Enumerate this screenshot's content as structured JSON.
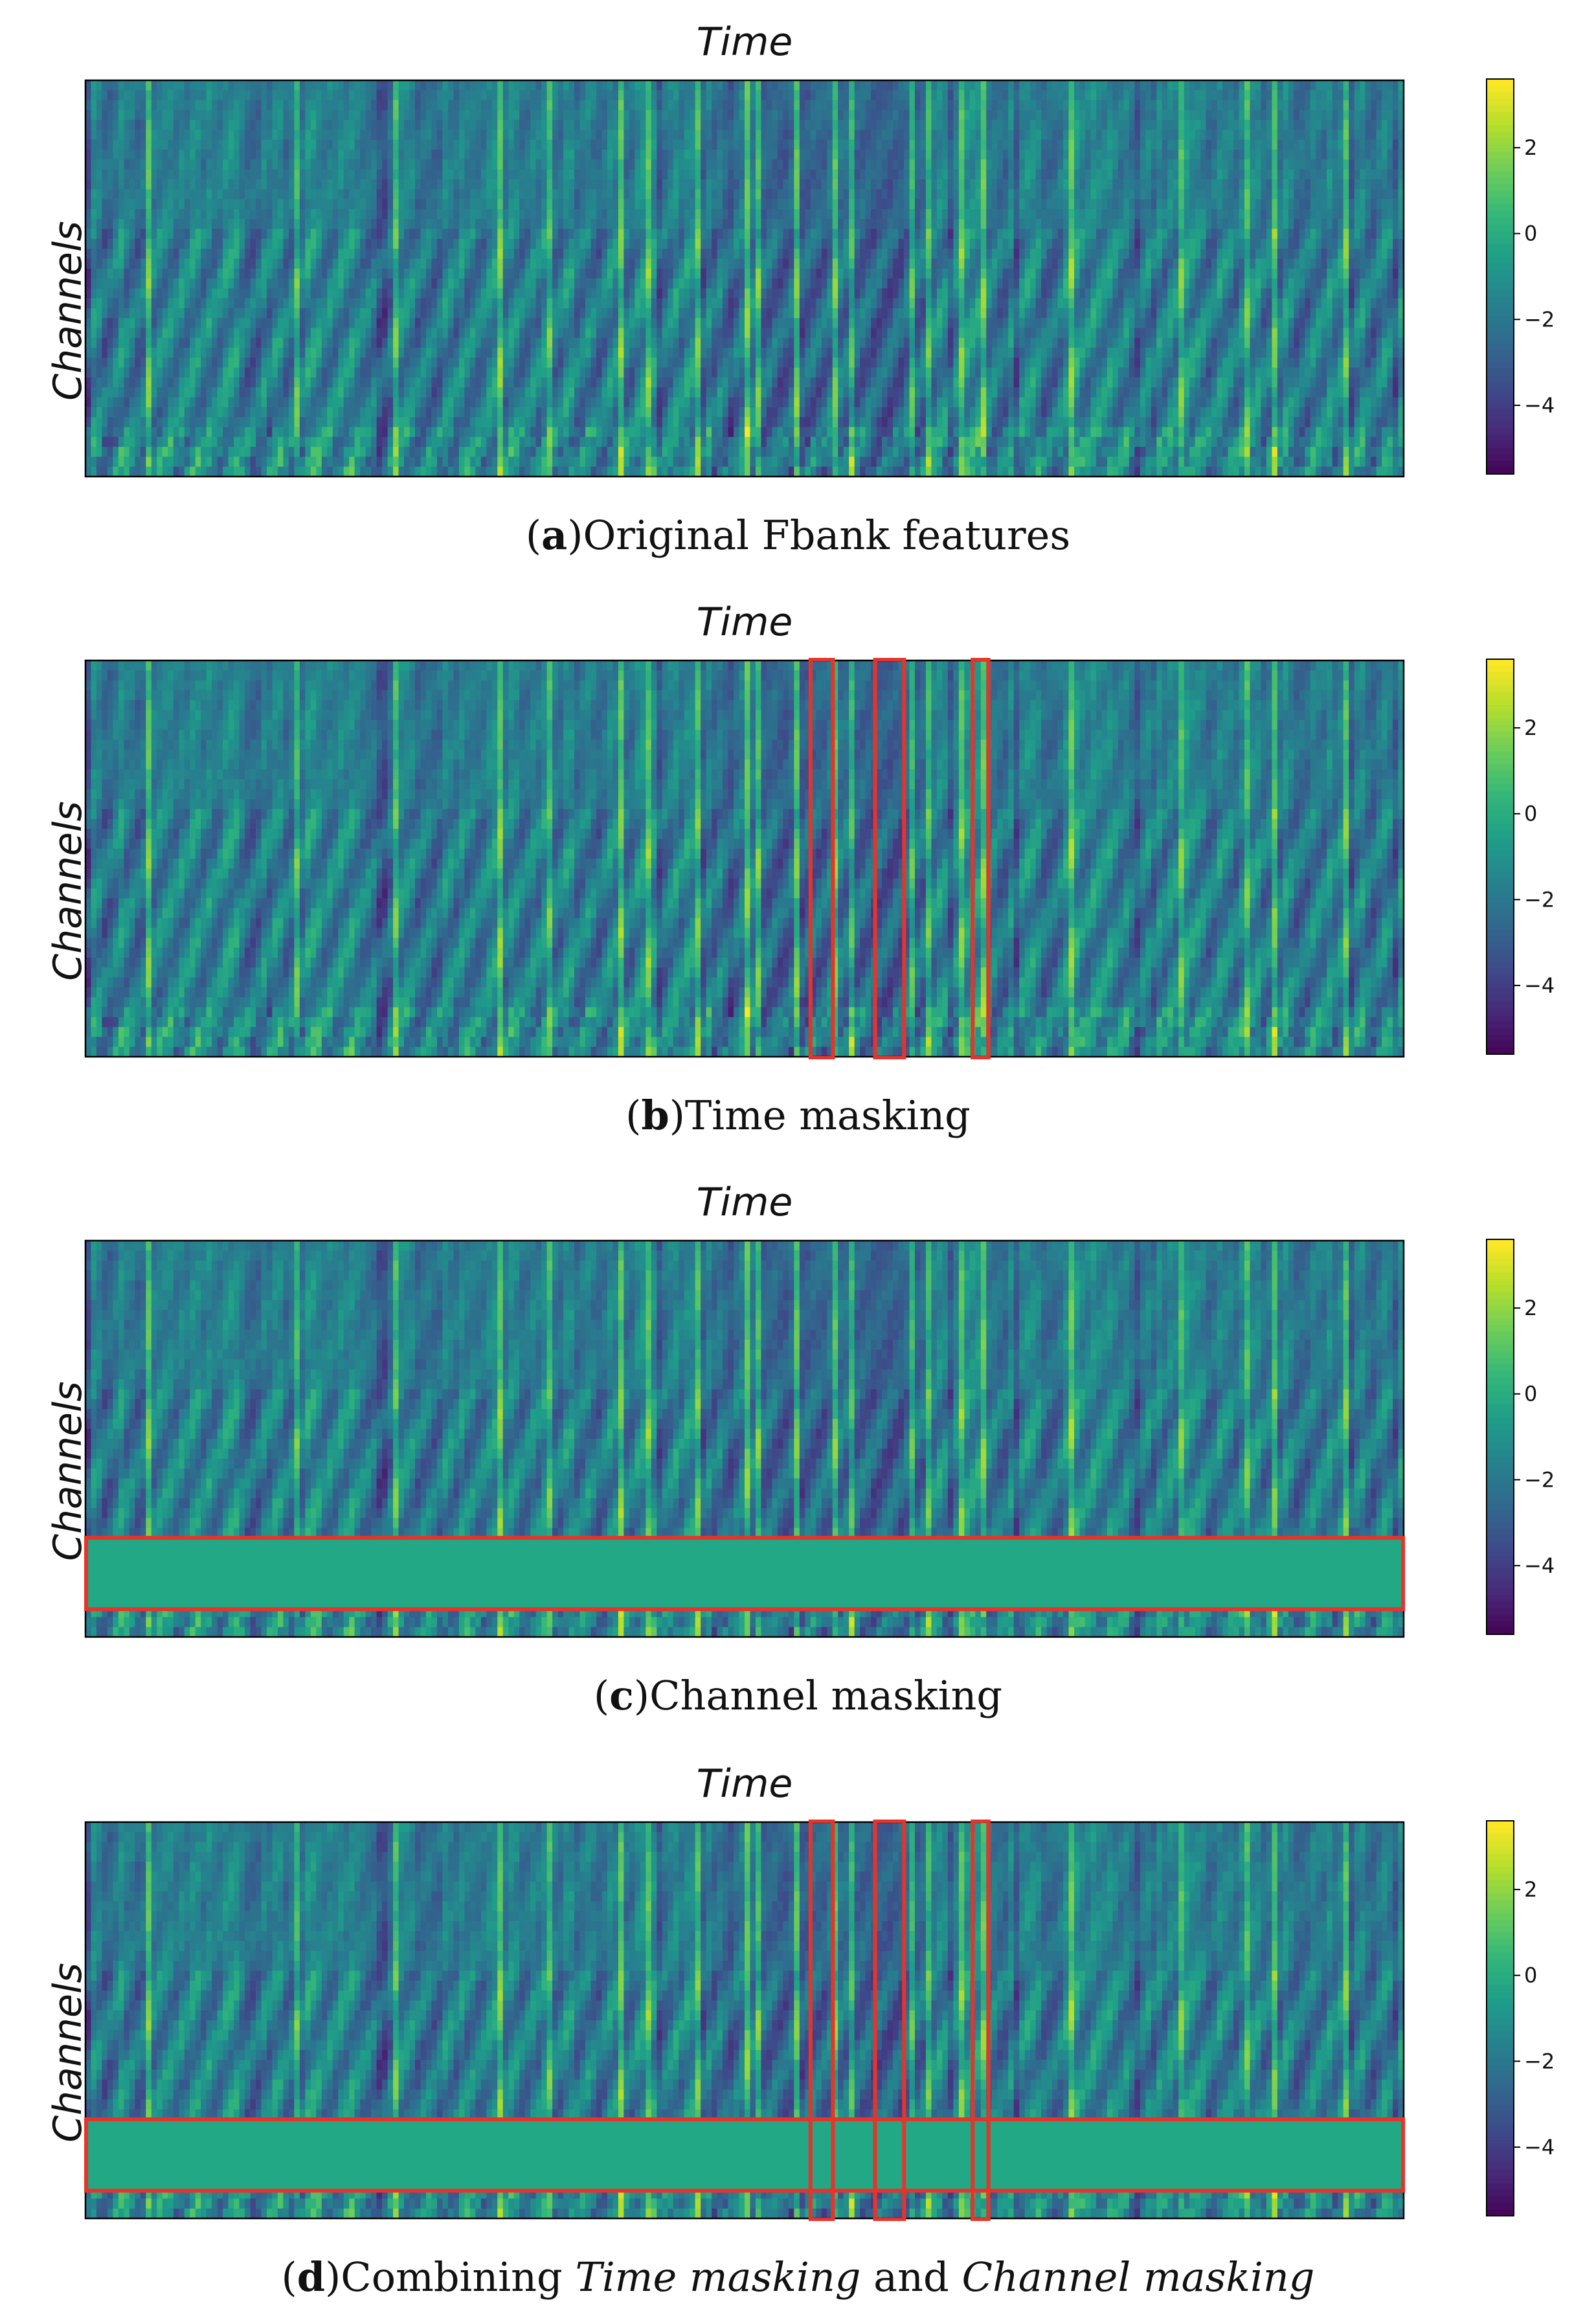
{
  "colors": {
    "mask_fill": "#22a884",
    "highlight": "#e8332a",
    "frame": "#000000"
  },
  "chart_data": [
    {
      "type": "heatmap",
      "panel_id": "a",
      "title": "Time",
      "xlabel": "Time",
      "ylabel": "Channels",
      "caption_letter": "a",
      "caption_text": "Original Fbank features",
      "colorbar": {
        "ticks": [
          2,
          0,
          -2,
          -4
        ],
        "tick_labels": [
          "2",
          "0",
          "−2",
          "−4"
        ],
        "range": [
          -5.6,
          3.6
        ],
        "colormap": "viridis"
      },
      "time_masks": [],
      "channel_masks": []
    },
    {
      "type": "heatmap",
      "panel_id": "b",
      "title": "Time",
      "xlabel": "Time",
      "ylabel": "Channels",
      "caption_letter": "b",
      "caption_text": "Time masking",
      "colorbar": {
        "ticks": [
          2,
          0,
          -2,
          -4
        ],
        "tick_labels": [
          "2",
          "0",
          "−2",
          "−4"
        ],
        "range": [
          -5.6,
          3.6
        ],
        "colormap": "viridis"
      },
      "time_masks": [
        [
          0.55,
          0.567
        ],
        [
          0.599,
          0.621
        ],
        [
          0.673,
          0.685
        ]
      ],
      "channel_masks": []
    },
    {
      "type": "heatmap",
      "panel_id": "c",
      "title": "Time",
      "xlabel": "Time",
      "ylabel": "Channels",
      "caption_letter": "c",
      "caption_text": "Channel masking",
      "colorbar": {
        "ticks": [
          2,
          0,
          -2,
          -4
        ],
        "tick_labels": [
          "2",
          "0",
          "−2",
          "−4"
        ],
        "range": [
          -5.6,
          3.6
        ],
        "colormap": "viridis"
      },
      "time_masks": [],
      "channel_masks": [
        [
          0.07,
          0.25
        ]
      ]
    },
    {
      "type": "heatmap",
      "panel_id": "d",
      "title": "Time",
      "xlabel": "Time",
      "ylabel": "Channels",
      "caption_letter": "d",
      "caption_text": "Combining Time masking and Channel masking",
      "caption_parts": [
        "Combining ",
        "Time masking",
        " and ",
        "Channel masking"
      ],
      "colorbar": {
        "ticks": [
          2,
          0,
          -2,
          -4
        ],
        "tick_labels": [
          "2",
          "0",
          "−2",
          "−4"
        ],
        "range": [
          -5.6,
          3.6
        ],
        "colormap": "viridis"
      },
      "time_masks": [
        [
          0.55,
          0.567
        ],
        [
          0.599,
          0.621
        ],
        [
          0.673,
          0.685
        ]
      ],
      "channel_masks": [
        [
          0.07,
          0.25
        ]
      ]
    }
  ]
}
